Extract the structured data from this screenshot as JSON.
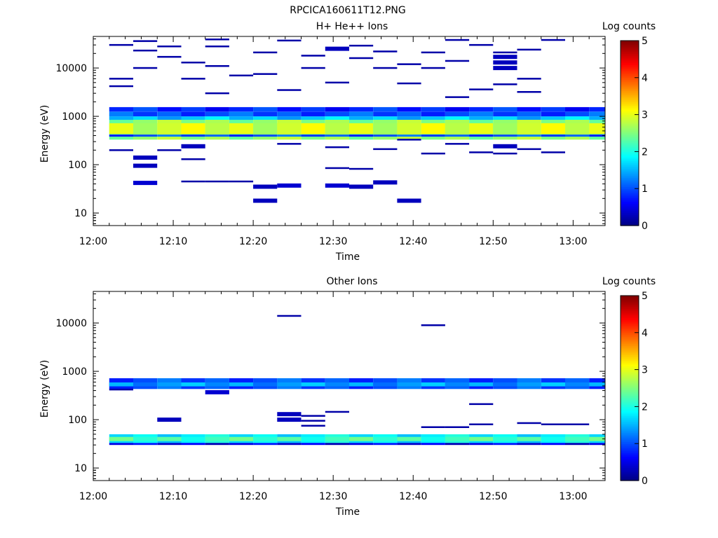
{
  "figure_title": "RPCICA160611T12.PNG",
  "colors": {
    "background": "#ffffff",
    "axis": "#000000",
    "colormap": [
      "#00007f",
      "#0000ff",
      "#007fff",
      "#00ffff",
      "#7fff7f",
      "#ffff00",
      "#ff7f00",
      "#ff0000",
      "#7f0000"
    ]
  },
  "chart_data": [
    {
      "type": "heatmap",
      "title": "H+ He++ Ions",
      "xlabel": "Time",
      "ylabel": "Energy (eV)",
      "x_ticks": [
        "12:00",
        "12:10",
        "12:20",
        "12:30",
        "12:40",
        "12:50",
        "13:00"
      ],
      "x_range_minutes": [
        0,
        64
      ],
      "y_scale": "log",
      "y_ticks": [
        "10",
        "100",
        "1000",
        "10000"
      ],
      "y_range": [
        5.5,
        45000
      ],
      "colorbar": {
        "label": "Log counts",
        "range": [
          0,
          5
        ],
        "ticks": [
          "0",
          "1",
          "2",
          "3",
          "4",
          "5"
        ]
      },
      "time_bins_start_minutes": [
        2,
        5,
        8,
        11,
        14,
        17,
        20,
        23,
        26,
        29,
        32,
        35,
        38,
        41,
        44,
        47,
        50,
        53,
        56,
        59,
        62
      ],
      "bin_width_minutes": 3,
      "bands": [
        {
          "e_lo": 330,
          "e_hi": 850,
          "value": 2.6
        },
        {
          "e_lo": 430,
          "e_hi": 720,
          "value": 2.9
        },
        {
          "e_lo": 850,
          "e_hi": 1000,
          "value": 1.6
        },
        {
          "e_lo": 1000,
          "e_hi": 1250,
          "value": 1.0
        },
        {
          "e_lo": 1250,
          "e_hi": 1550,
          "value": 0.8
        },
        {
          "e_lo": 380,
          "e_hi": 420,
          "value": 1.0
        }
      ],
      "sparse_points": [
        {
          "t": 2,
          "e": 200,
          "v": 0.2
        },
        {
          "t": 2,
          "e": 4200,
          "v": 0.2
        },
        {
          "t": 2,
          "e": 6000,
          "v": 0.2
        },
        {
          "t": 2,
          "e": 30000,
          "v": 0.2
        },
        {
          "t": 5,
          "e": 42,
          "v": 0.4
        },
        {
          "t": 5,
          "e": 95,
          "v": 0.3
        },
        {
          "t": 5,
          "e": 140,
          "v": 0.3
        },
        {
          "t": 5,
          "e": 10000,
          "v": 0.2
        },
        {
          "t": 5,
          "e": 23000,
          "v": 0.2
        },
        {
          "t": 5,
          "e": 36000,
          "v": 0.2
        },
        {
          "t": 8,
          "e": 200,
          "v": 0.2
        },
        {
          "t": 8,
          "e": 17000,
          "v": 0.2
        },
        {
          "t": 8,
          "e": 28000,
          "v": 0.2
        },
        {
          "t": 11,
          "e": 45,
          "v": 0.2
        },
        {
          "t": 11,
          "e": 130,
          "v": 0.2
        },
        {
          "t": 11,
          "e": 240,
          "v": 0.3
        },
        {
          "t": 11,
          "e": 6000,
          "v": 0.2
        },
        {
          "t": 11,
          "e": 13000,
          "v": 0.2
        },
        {
          "t": 14,
          "e": 45,
          "v": 0.2
        },
        {
          "t": 14,
          "e": 3000,
          "v": 0.2
        },
        {
          "t": 14,
          "e": 11000,
          "v": 0.2
        },
        {
          "t": 14,
          "e": 28000,
          "v": 0.2
        },
        {
          "t": 14,
          "e": 39000,
          "v": 0.2
        },
        {
          "t": 17,
          "e": 45,
          "v": 0.2
        },
        {
          "t": 17,
          "e": 7000,
          "v": 0.2
        },
        {
          "t": 20,
          "e": 18,
          "v": 0.3
        },
        {
          "t": 20,
          "e": 35,
          "v": 0.3
        },
        {
          "t": 20,
          "e": 7500,
          "v": 0.2
        },
        {
          "t": 20,
          "e": 21000,
          "v": 0.2
        },
        {
          "t": 23,
          "e": 37,
          "v": 0.4
        },
        {
          "t": 23,
          "e": 270,
          "v": 0.2
        },
        {
          "t": 23,
          "e": 3500,
          "v": 0.2
        },
        {
          "t": 23,
          "e": 37000,
          "v": 0.2
        },
        {
          "t": 26,
          "e": 10000,
          "v": 0.2
        },
        {
          "t": 26,
          "e": 18000,
          "v": 0.2
        },
        {
          "t": 29,
          "e": 37,
          "v": 0.4
        },
        {
          "t": 29,
          "e": 85,
          "v": 0.2
        },
        {
          "t": 29,
          "e": 230,
          "v": 0.2
        },
        {
          "t": 29,
          "e": 5000,
          "v": 0.2
        },
        {
          "t": 29,
          "e": 25000,
          "v": 0.3
        },
        {
          "t": 32,
          "e": 35,
          "v": 0.3
        },
        {
          "t": 32,
          "e": 82,
          "v": 0.2
        },
        {
          "t": 32,
          "e": 16000,
          "v": 0.2
        },
        {
          "t": 32,
          "e": 29000,
          "v": 0.2
        },
        {
          "t": 35,
          "e": 43,
          "v": 0.3
        },
        {
          "t": 35,
          "e": 210,
          "v": 0.2
        },
        {
          "t": 35,
          "e": 10000,
          "v": 0.2
        },
        {
          "t": 35,
          "e": 22000,
          "v": 0.2
        },
        {
          "t": 38,
          "e": 18,
          "v": 0.3
        },
        {
          "t": 38,
          "e": 330,
          "v": 0.2
        },
        {
          "t": 38,
          "e": 4800,
          "v": 0.2
        },
        {
          "t": 38,
          "e": 12000,
          "v": 0.2
        },
        {
          "t": 41,
          "e": 170,
          "v": 0.2
        },
        {
          "t": 41,
          "e": 10000,
          "v": 0.2
        },
        {
          "t": 41,
          "e": 21000,
          "v": 0.2
        },
        {
          "t": 44,
          "e": 270,
          "v": 0.2
        },
        {
          "t": 44,
          "e": 2500,
          "v": 0.2
        },
        {
          "t": 44,
          "e": 14000,
          "v": 0.2
        },
        {
          "t": 44,
          "e": 38000,
          "v": 0.2
        },
        {
          "t": 47,
          "e": 180,
          "v": 0.2
        },
        {
          "t": 47,
          "e": 3600,
          "v": 0.2
        },
        {
          "t": 47,
          "e": 30000,
          "v": 0.2
        },
        {
          "t": 50,
          "e": 170,
          "v": 0.2
        },
        {
          "t": 50,
          "e": 240,
          "v": 0.3
        },
        {
          "t": 50,
          "e": 4600,
          "v": 0.2
        },
        {
          "t": 50,
          "e": 10000,
          "v": 0.3
        },
        {
          "t": 50,
          "e": 13000,
          "v": 0.3
        },
        {
          "t": 50,
          "e": 17000,
          "v": 0.3
        },
        {
          "t": 50,
          "e": 21000,
          "v": 0.2
        },
        {
          "t": 53,
          "e": 210,
          "v": 0.2
        },
        {
          "t": 53,
          "e": 3200,
          "v": 0.2
        },
        {
          "t": 53,
          "e": 6000,
          "v": 0.2
        },
        {
          "t": 53,
          "e": 24000,
          "v": 0.2
        },
        {
          "t": 56,
          "e": 180,
          "v": 0.2
        },
        {
          "t": 56,
          "e": 38000,
          "v": 0.2
        }
      ]
    },
    {
      "type": "heatmap",
      "title": "Other Ions",
      "xlabel": "Time",
      "ylabel": "Energy (eV)",
      "x_ticks": [
        "12:00",
        "12:10",
        "12:20",
        "12:30",
        "12:40",
        "12:50",
        "13:00"
      ],
      "x_range_minutes": [
        0,
        64
      ],
      "y_scale": "log",
      "y_ticks": [
        "10",
        "100",
        "1000",
        "10000"
      ],
      "y_range": [
        5.5,
        45000
      ],
      "colorbar": {
        "label": "Log counts",
        "range": [
          0,
          5
        ],
        "ticks": [
          "0",
          "1",
          "2",
          "3",
          "4",
          "5"
        ]
      },
      "time_bins_start_minutes": [
        2,
        5,
        8,
        11,
        14,
        17,
        20,
        23,
        26,
        29,
        32,
        35,
        38,
        41,
        44,
        47,
        50,
        53,
        56,
        59,
        62
      ],
      "bin_width_minutes": 3,
      "bands": [
        {
          "e_lo": 430,
          "e_hi": 720,
          "value": 1.0
        },
        {
          "e_lo": 490,
          "e_hi": 590,
          "value": 1.4
        },
        {
          "e_lo": 33,
          "e_hi": 50,
          "value": 1.8
        },
        {
          "e_lo": 36,
          "e_hi": 44,
          "value": 2.2
        },
        {
          "e_lo": 30,
          "e_hi": 33,
          "value": 0.5
        }
      ],
      "sparse_points": [
        {
          "t": 2,
          "e": 420,
          "v": 0.2
        },
        {
          "t": 8,
          "e": 100,
          "v": 0.3
        },
        {
          "t": 14,
          "e": 370,
          "v": 0.4
        },
        {
          "t": 23,
          "e": 100,
          "v": 0.3
        },
        {
          "t": 23,
          "e": 130,
          "v": 0.3
        },
        {
          "t": 23,
          "e": 14000,
          "v": 0.2
        },
        {
          "t": 26,
          "e": 75,
          "v": 0.2
        },
        {
          "t": 26,
          "e": 95,
          "v": 0.2
        },
        {
          "t": 26,
          "e": 120,
          "v": 0.2
        },
        {
          "t": 29,
          "e": 145,
          "v": 0.2
        },
        {
          "t": 41,
          "e": 70,
          "v": 0.2
        },
        {
          "t": 41,
          "e": 9000,
          "v": 0.2
        },
        {
          "t": 44,
          "e": 70,
          "v": 0.2
        },
        {
          "t": 47,
          "e": 210,
          "v": 0.2
        },
        {
          "t": 47,
          "e": 80,
          "v": 0.2
        },
        {
          "t": 53,
          "e": 85,
          "v": 0.2
        },
        {
          "t": 56,
          "e": 80,
          "v": 0.2
        },
        {
          "t": 59,
          "e": 80,
          "v": 0.2
        }
      ]
    }
  ]
}
